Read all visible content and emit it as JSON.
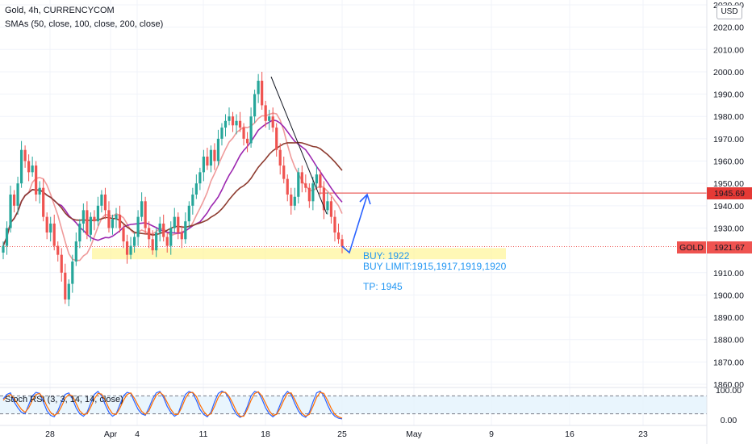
{
  "legend": {
    "title": "Gold, 4h, CURRENCYCOM",
    "smas": "SMAs (50, close, 100, close, 200, close)",
    "rsi": "Stoch RSI (3, 3, 14, 14, close)"
  },
  "currency_button": "USD",
  "annotations": {
    "buy": "BUY: 1922",
    "buy_limit": "BUY LIMIT:1915,1917,1919,1920",
    "tp": "TP: 1945"
  },
  "price_labels": {
    "resistance": "1945.69",
    "symbol": "GOLD",
    "last": "1921.67"
  },
  "colors": {
    "up": "#26a69a",
    "down": "#ef5350",
    "accent": "#2196f3",
    "sma50": "#ef9a9a",
    "sma100": "#9c27b0",
    "sma200": "#8d3b2f",
    "resistance": "#e53935"
  },
  "chart_data": {
    "type": "candlestick",
    "symbol": "Gold",
    "timeframe": "4h",
    "y_ticks": [
      2030,
      2020,
      2010,
      2000,
      1990,
      1980,
      1970,
      1960,
      1950,
      1940,
      1930,
      1910,
      1900,
      1890,
      1880,
      1870,
      1860
    ],
    "y_tick_labels": [
      "2030.00",
      "2020.00",
      "2010.00",
      "2000.00",
      "1990.00",
      "1980.00",
      "1970.00",
      "1960.00",
      "1950.00",
      "1940.00",
      "1930.00",
      "1910.00",
      "1900.00",
      "1890.00",
      "1880.00",
      "1870.00",
      "1860.00"
    ],
    "x_tick_labels": [
      "28",
      "Apr",
      "4",
      "11",
      "18",
      "25",
      "May",
      "9",
      "16",
      "23"
    ],
    "resistance_level": 1945.69,
    "last_price": 1921.67,
    "buy_zone": [
      1916,
      1921
    ],
    "closes": [
      1922,
      1930,
      1945,
      1940,
      1950,
      1965,
      1960,
      1955,
      1958,
      1945,
      1948,
      1935,
      1928,
      1932,
      1922,
      1918,
      1910,
      1898,
      1905,
      1915,
      1924,
      1932,
      1938,
      1927,
      1935,
      1933,
      1940,
      1945,
      1938,
      1930,
      1934,
      1936,
      1930,
      1924,
      1918,
      1922,
      1926,
      1935,
      1942,
      1930,
      1925,
      1920,
      1928,
      1932,
      1926,
      1922,
      1930,
      1935,
      1928,
      1925,
      1933,
      1940,
      1945,
      1950,
      1955,
      1962,
      1958,
      1965,
      1960,
      1970,
      1975,
      1978,
      1980,
      1976,
      1978,
      1975,
      1970,
      1968,
      1980,
      1990,
      1996,
      1985,
      1978,
      1980,
      1975,
      1965,
      1958,
      1952,
      1945,
      1940,
      1944,
      1955,
      1950,
      1948,
      1942,
      1950,
      1954,
      1948,
      1938,
      1942,
      1935,
      1928,
      1925,
      1921.67
    ],
    "rsi_ticks": [
      100,
      0
    ],
    "rsi_bounds": [
      80,
      20
    ],
    "stoch_k": [
      70,
      85,
      90,
      60,
      40,
      25,
      20,
      50,
      80,
      92,
      88,
      60,
      30,
      15,
      10,
      30,
      60,
      85,
      90,
      70,
      40,
      20,
      12,
      25,
      55,
      85,
      95,
      80,
      50,
      25,
      12,
      20,
      50,
      80,
      92,
      88,
      60,
      35,
      20,
      15,
      40,
      70,
      90,
      95,
      75,
      45,
      25,
      12,
      20,
      55,
      85,
      95,
      90,
      65,
      35,
      18,
      10,
      25,
      60,
      88,
      96,
      90,
      70,
      40,
      18,
      8,
      15,
      45,
      80,
      95,
      92,
      70,
      40,
      20,
      10,
      20,
      50,
      80,
      95,
      85,
      55,
      30,
      15,
      8,
      25,
      60,
      90,
      96,
      80,
      50,
      25,
      12,
      5,
      3
    ],
    "stoch_d": [
      65,
      78,
      85,
      72,
      52,
      35,
      25,
      40,
      65,
      85,
      88,
      72,
      45,
      25,
      15,
      22,
      45,
      72,
      85,
      80,
      55,
      30,
      18,
      20,
      42,
      70,
      88,
      86,
      65,
      38,
      20,
      18,
      38,
      65,
      85,
      90,
      72,
      48,
      28,
      18,
      30,
      58,
      82,
      92,
      82,
      58,
      35,
      18,
      18,
      42,
      72,
      90,
      92,
      78,
      50,
      28,
      14,
      20,
      45,
      75,
      92,
      92,
      78,
      55,
      28,
      12,
      12,
      35,
      65,
      88,
      94,
      80,
      55,
      30,
      15,
      18,
      38,
      65,
      88,
      90,
      68,
      42,
      22,
      12,
      18,
      45,
      75,
      92,
      88,
      65,
      38,
      18,
      10,
      5
    ]
  }
}
